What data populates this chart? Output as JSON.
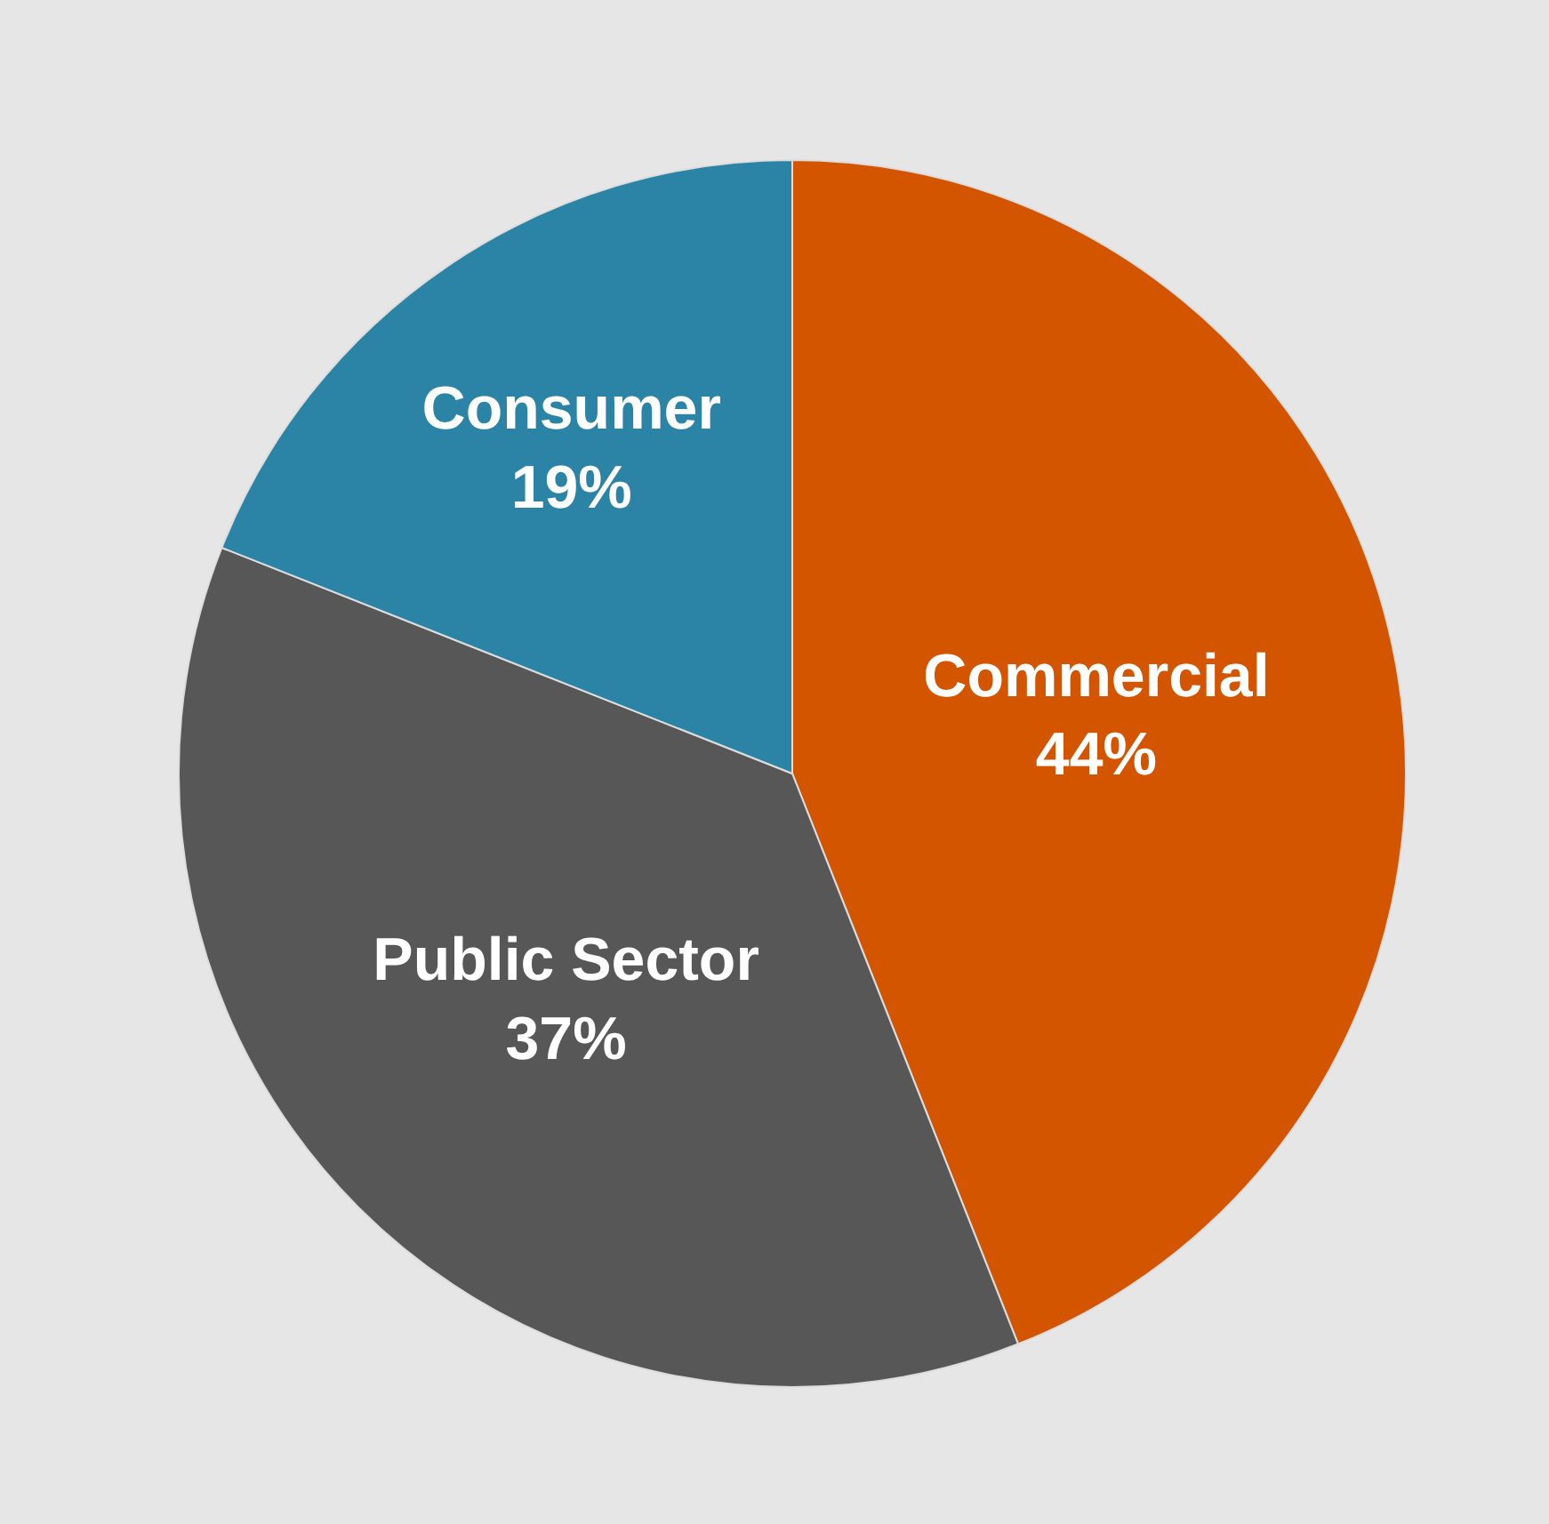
{
  "chart_data": {
    "type": "pie",
    "categories": [
      "Commercial",
      "Public Sector",
      "Consumer"
    ],
    "values": [
      44,
      37,
      19
    ],
    "value_labels": [
      "44%",
      "37%",
      "19%"
    ],
    "colors": [
      "#d45500",
      "#575757",
      "#2b84a6"
    ],
    "legend": false
  }
}
